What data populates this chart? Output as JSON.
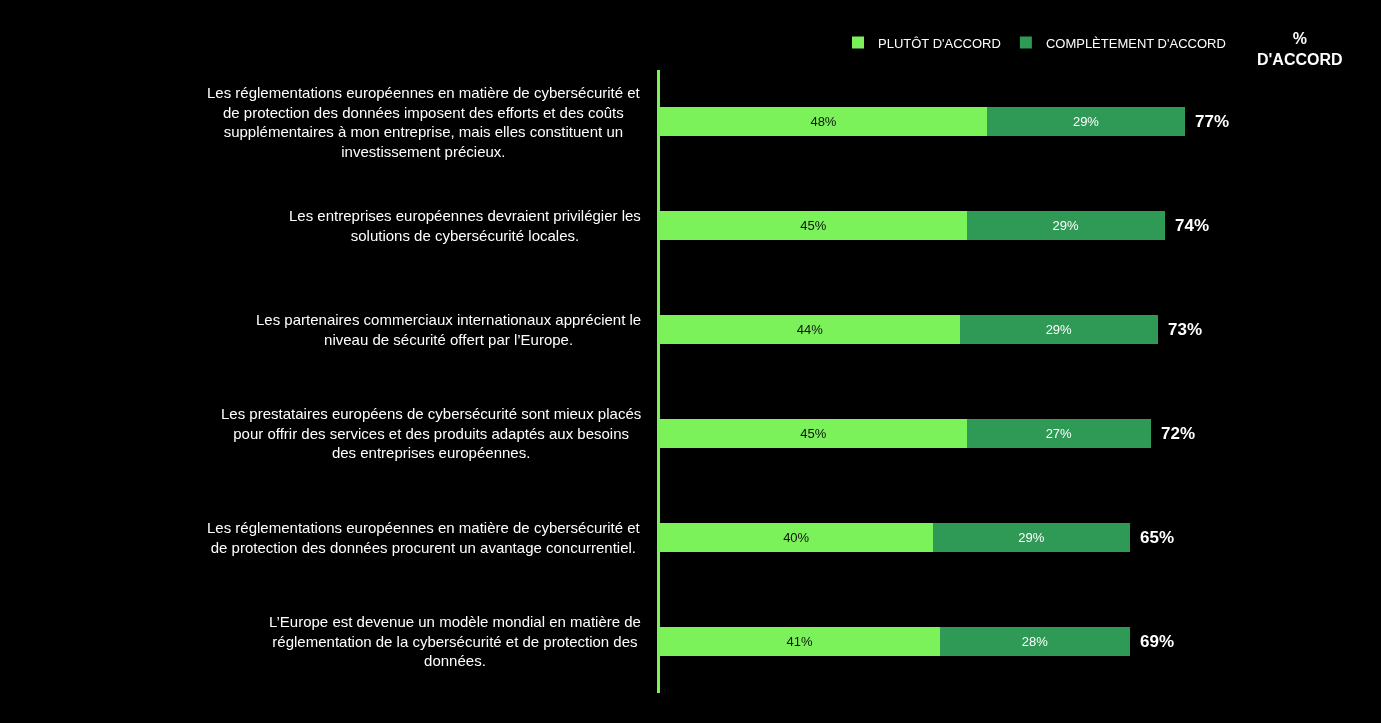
{
  "chart_data": {
    "type": "bar",
    "orientation": "horizontal",
    "stacked": true,
    "legend": "top right",
    "categories": [
      "Les réglementations européennes en matière de cybersécurité et de protection des données imposent des efforts et des coûts supplémentaires à mon entreprise, mais elles constituent un investissement précieux.",
      "Les entreprises européennes devraient privilégier les solutions de cybersécurité locales.",
      "Les partenaires commerciaux internationaux apprécient le niveau de sécurité offert par l’Europe.",
      "Les prestataires européens de cybersécurité sont mieux placés pour offrir des services et des produits adaptés aux besoins des entreprises européennes.",
      "Les réglementations européennes en matière de cybersécurité et de protection des données procurent un avantage concurrentiel.",
      "L’Europe est devenue un modèle mondial en matière de réglementation de la cybersécurité et de protection des données."
    ],
    "series": [
      {
        "name": "PLUTÔT D'ACCORD",
        "color": "#7cf25a",
        "values": [
          48,
          45,
          44,
          45,
          40,
          41
        ],
        "value_labels": [
          "48%",
          "45%",
          "44%",
          "45%",
          "40%",
          "41%"
        ]
      },
      {
        "name": "COMPLÈTEMENT D'ACCORD",
        "color": "#2f9a55",
        "values": [
          29,
          29,
          29,
          27,
          29,
          28
        ],
        "value_labels": [
          "29%",
          "29%",
          "29%",
          "27%",
          "29%",
          "28%"
        ]
      }
    ],
    "annotations": [
      "% D'ACCORD",
      {
        "text": "77%",
        "x": 77,
        "y": "Les réglementations européennes en matière de cybersécurité et de protection des données imposent des efforts et des coûts supplémentaires à mon entreprise, mais elles constituent un investissement précieux."
      },
      {
        "text": "74%",
        "x": 74,
        "y": "Les entreprises européennes devraient privilégier les solutions de cybersécurité locales."
      },
      {
        "text": "73%",
        "x": 73,
        "y": "Les partenaires commerciaux internationaux apprécient le niveau de sécurité offert par l’Europe."
      },
      {
        "text": "72%",
        "x": 72,
        "y": "Les prestataires européens de cybersécurité sont mieux placés pour offrir des services et des produits adaptés aux besoins des entreprises européennes."
      },
      {
        "text": "65%",
        "x": 69,
        "y": "Les réglementations européennes en matière de cybersécurité et de protection des données procurent un avantage concurrentiel."
      },
      {
        "text": "69%",
        "x": 69,
        "y": "L’Europe est devenue un modèle mondial en matière de réglementation de la cybersécurité et de protection des données."
      }
    ]
  }
}
